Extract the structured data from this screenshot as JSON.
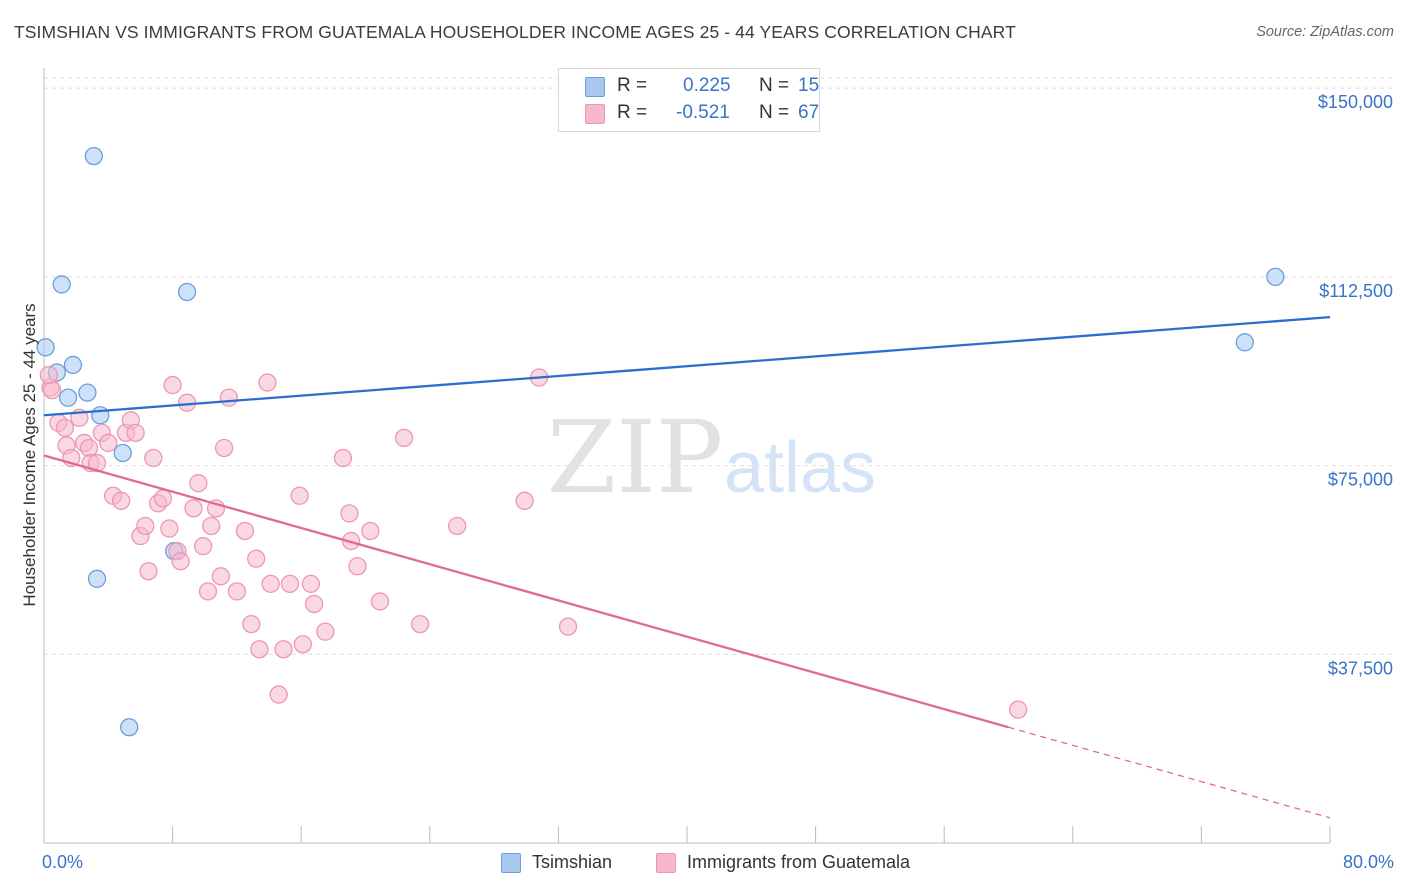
{
  "title": "TSIMSHIAN VS IMMIGRANTS FROM GUATEMALA HOUSEHOLDER INCOME AGES 25 - 44 YEARS CORRELATION CHART",
  "source": "Source: ZipAtlas.com",
  "watermark": {
    "zip": "ZIP",
    "atlas": "atlas"
  },
  "legend": {
    "r_label": "R =",
    "n_label": "N =",
    "items": [
      {
        "name": "Tsimshian",
        "r": "0.225",
        "n": "15",
        "color": "#a8c8f0"
      },
      {
        "name": "Immigrants from Guatemala",
        "r": "-0.521",
        "n": "67",
        "color": "#f5b8cc"
      }
    ]
  },
  "chart_data": {
    "type": "scatter",
    "ylabel": "Householder Income Ages 25 - 44 years",
    "xlabel": "",
    "x_tick_labels": [
      "0.0%",
      "80.0%"
    ],
    "y_tick_labels": [
      "$37,500",
      "$75,000",
      "$112,500",
      "$150,000"
    ],
    "y_ticks": [
      37500,
      75000,
      112500,
      150000
    ],
    "xlim": [
      0,
      80
    ],
    "ylim": [
      0,
      155000
    ],
    "grid": true,
    "legend_position": "top-center",
    "series": [
      {
        "name": "Tsimshian",
        "color": "#a8c8f0",
        "edge": "#6a9fe0",
        "line_color": "#2a6fd0",
        "trend": {
          "x": [
            0,
            80
          ],
          "y": [
            85000,
            104500
          ]
        },
        "points": [
          [
            0.1,
            98500
          ],
          [
            3.1,
            136500
          ],
          [
            1.1,
            111000
          ],
          [
            8.9,
            109500
          ],
          [
            1.8,
            95000
          ],
          [
            0.8,
            93500
          ],
          [
            2.7,
            89500
          ],
          [
            1.5,
            88500
          ],
          [
            3.5,
            85000
          ],
          [
            4.9,
            77500
          ],
          [
            8.1,
            58000
          ],
          [
            3.3,
            52500
          ],
          [
            5.3,
            23000
          ],
          [
            76.6,
            112500
          ],
          [
            74.7,
            99500
          ]
        ]
      },
      {
        "name": "Immigrants from Guatemala",
        "color": "#f5b8cc",
        "edge": "#ee96b4",
        "line_color": "#e06a94",
        "trend": {
          "x": [
            0,
            60
          ],
          "y": [
            77000,
            23000
          ]
        },
        "trend_ext": {
          "x": [
            60,
            80
          ],
          "y": [
            23000,
            5000
          ]
        },
        "points": [
          [
            0.4,
            90500
          ],
          [
            0.5,
            90000
          ],
          [
            0.9,
            83500
          ],
          [
            1.3,
            82500
          ],
          [
            1.4,
            79000
          ],
          [
            1.7,
            76500
          ],
          [
            2.2,
            84500
          ],
          [
            2.5,
            79500
          ],
          [
            2.8,
            78500
          ],
          [
            2.9,
            75500
          ],
          [
            3.3,
            75500
          ],
          [
            3.6,
            81500
          ],
          [
            4.0,
            79500
          ],
          [
            4.3,
            69000
          ],
          [
            4.8,
            68000
          ],
          [
            5.1,
            81500
          ],
          [
            5.4,
            84000
          ],
          [
            5.7,
            81500
          ],
          [
            6.0,
            61000
          ],
          [
            6.3,
            63000
          ],
          [
            6.5,
            54000
          ],
          [
            6.8,
            76500
          ],
          [
            7.1,
            67500
          ],
          [
            7.4,
            68500
          ],
          [
            7.8,
            62500
          ],
          [
            8.0,
            91000
          ],
          [
            8.3,
            58000
          ],
          [
            8.5,
            56000
          ],
          [
            8.9,
            87500
          ],
          [
            9.3,
            66500
          ],
          [
            9.6,
            71500
          ],
          [
            9.9,
            59000
          ],
          [
            10.2,
            50000
          ],
          [
            10.4,
            63000
          ],
          [
            10.7,
            66500
          ],
          [
            11.0,
            53000
          ],
          [
            11.2,
            78500
          ],
          [
            11.5,
            88500
          ],
          [
            12.0,
            50000
          ],
          [
            12.5,
            62000
          ],
          [
            12.9,
            43500
          ],
          [
            13.2,
            56500
          ],
          [
            13.4,
            38500
          ],
          [
            13.9,
            91500
          ],
          [
            14.1,
            51500
          ],
          [
            14.6,
            29500
          ],
          [
            14.9,
            38500
          ],
          [
            15.3,
            51500
          ],
          [
            15.9,
            69000
          ],
          [
            16.1,
            39500
          ],
          [
            16.6,
            51500
          ],
          [
            16.8,
            47500
          ],
          [
            17.5,
            42000
          ],
          [
            18.6,
            76500
          ],
          [
            19.0,
            65500
          ],
          [
            19.1,
            60000
          ],
          [
            19.5,
            55000
          ],
          [
            20.3,
            62000
          ],
          [
            20.9,
            48000
          ],
          [
            22.4,
            80500
          ],
          [
            23.4,
            43500
          ],
          [
            25.7,
            63000
          ],
          [
            29.9,
            68000
          ],
          [
            30.8,
            92500
          ],
          [
            32.6,
            43000
          ],
          [
            60.6,
            26500
          ],
          [
            0.3,
            93000
          ]
        ]
      }
    ]
  }
}
